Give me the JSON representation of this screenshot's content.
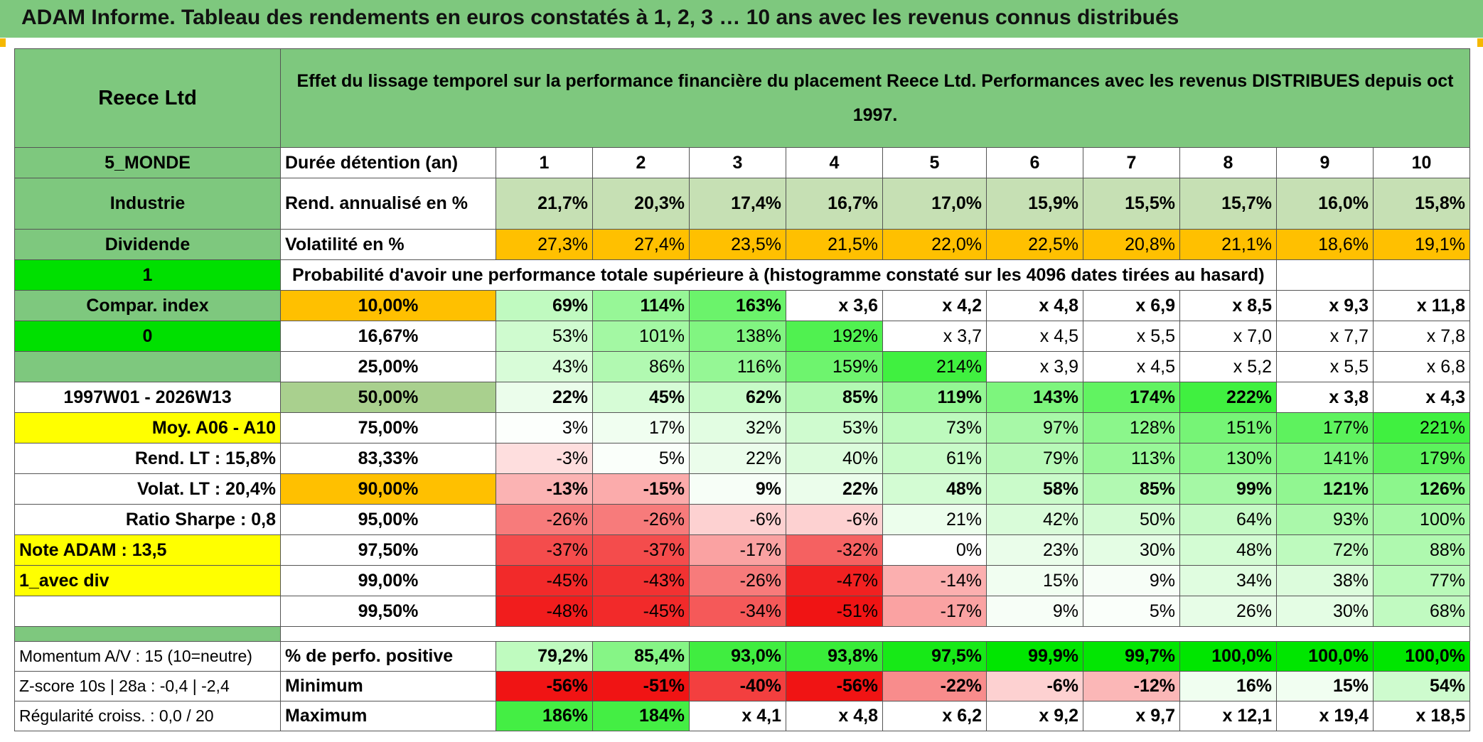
{
  "title": "ADAM Informe. Tableau des rendements en euros constatés à 1, 2, 3 … 10 ans avec les revenus connus distribués",
  "header": {
    "fund": "Reece Ltd",
    "description": "Effet du lissage temporel sur la performance financière du placement Reece Ltd. Performances avec les revenus DISTRIBUES depuis oct 1997."
  },
  "side": {
    "region": "5_MONDE",
    "sector": "Industrie",
    "policy": "Dividende",
    "flag1": "1",
    "compar": "Compar. index",
    "flag0": "0",
    "period": "1997W01 - 2026W13",
    "moy": "Moy. A06 - A10",
    "rend_lt": "Rend. LT :   15,8%",
    "volat_lt": "Volat. LT :   20,4%",
    "sharpe": "Ratio Sharpe :    0,8",
    "note": "Note ADAM : 13,5",
    "avec_div": "1_avec div",
    "momentum": "Momentum A/V : 15 (10=neutre)",
    "zscore": "Z-score 10s | 28a : -0,4 | -2,4",
    "regularite": "Régularité croiss. : 0,0 / 20"
  },
  "labels": {
    "duree": "Durée détention (an)",
    "rend": "Rend. annualisé en %",
    "vol": "Volatilité en %",
    "proba": "Probabilité d'avoir une performance totale supérieure à (histogramme constaté sur les 4096 dates tirées au hasard)",
    "positive": "% de perfo. positive",
    "minimum": "Minimum",
    "maximum": "Maximum"
  },
  "years": [
    "1",
    "2",
    "3",
    "4",
    "5",
    "6",
    "7",
    "8",
    "9",
    "10"
  ],
  "rend": [
    "21,7%",
    "20,3%",
    "17,4%",
    "16,7%",
    "17,0%",
    "15,9%",
    "15,5%",
    "15,7%",
    "16,0%",
    "15,8%"
  ],
  "vol": [
    "27,3%",
    "27,4%",
    "23,5%",
    "21,5%",
    "22,0%",
    "22,5%",
    "20,8%",
    "21,1%",
    "18,6%",
    "19,1%"
  ],
  "quantiles": [
    {
      "p": "10,00%",
      "v": [
        "69%",
        "114%",
        "163%",
        "x 3,6",
        "x 4,2",
        "x 4,8",
        "x 6,9",
        "x 8,5",
        "x 9,3",
        "x 11,8"
      ]
    },
    {
      "p": "16,67%",
      "v": [
        "53%",
        "101%",
        "138%",
        "192%",
        "x 3,7",
        "x 4,5",
        "x 5,5",
        "x 7,0",
        "x 7,7",
        "x 7,8"
      ]
    },
    {
      "p": "25,00%",
      "v": [
        "43%",
        "86%",
        "116%",
        "159%",
        "214%",
        "x 3,9",
        "x 4,5",
        "x 5,2",
        "x 5,5",
        "x 6,8"
      ]
    },
    {
      "p": "50,00%",
      "v": [
        "22%",
        "45%",
        "62%",
        "85%",
        "119%",
        "143%",
        "174%",
        "222%",
        "x 3,8",
        "x 4,3"
      ]
    },
    {
      "p": "75,00%",
      "v": [
        "3%",
        "17%",
        "32%",
        "53%",
        "73%",
        "97%",
        "128%",
        "151%",
        "177%",
        "221%"
      ]
    },
    {
      "p": "83,33%",
      "v": [
        "-3%",
        "5%",
        "22%",
        "40%",
        "61%",
        "79%",
        "113%",
        "130%",
        "141%",
        "179%"
      ]
    },
    {
      "p": "90,00%",
      "v": [
        "-13%",
        "-15%",
        "9%",
        "22%",
        "48%",
        "58%",
        "85%",
        "99%",
        "121%",
        "126%"
      ]
    },
    {
      "p": "95,00%",
      "v": [
        "-26%",
        "-26%",
        "-6%",
        "-6%",
        "21%",
        "42%",
        "50%",
        "64%",
        "93%",
        "100%"
      ]
    },
    {
      "p": "97,50%",
      "v": [
        "-37%",
        "-37%",
        "-17%",
        "-32%",
        "0%",
        "23%",
        "30%",
        "48%",
        "72%",
        "88%"
      ]
    },
    {
      "p": "99,00%",
      "v": [
        "-45%",
        "-43%",
        "-26%",
        "-47%",
        "-14%",
        "15%",
        "9%",
        "34%",
        "38%",
        "77%"
      ]
    },
    {
      "p": "99,50%",
      "v": [
        "-48%",
        "-45%",
        "-34%",
        "-51%",
        "-17%",
        "9%",
        "5%",
        "26%",
        "30%",
        "68%"
      ]
    }
  ],
  "positive": [
    "79,2%",
    "85,4%",
    "93,0%",
    "93,8%",
    "97,5%",
    "99,9%",
    "99,7%",
    "100,0%",
    "100,0%",
    "100,0%"
  ],
  "minimum": [
    "-56%",
    "-51%",
    "-40%",
    "-56%",
    "-22%",
    "-6%",
    "-12%",
    "16%",
    "15%",
    "54%"
  ],
  "maximum": [
    "186%",
    "184%",
    "x 4,1",
    "x 4,8",
    "x 6,2",
    "x 9,2",
    "x 9,7",
    "x 12,1",
    "x 19,4",
    "x 18,5"
  ],
  "colors": {
    "header_green": "#7ec87e",
    "rend_bg": "#c6e0b4",
    "vol_bg": "#ffc000",
    "yellow": "#ffff00",
    "bright_green": "#00e000",
    "red_text": "#e01010"
  }
}
